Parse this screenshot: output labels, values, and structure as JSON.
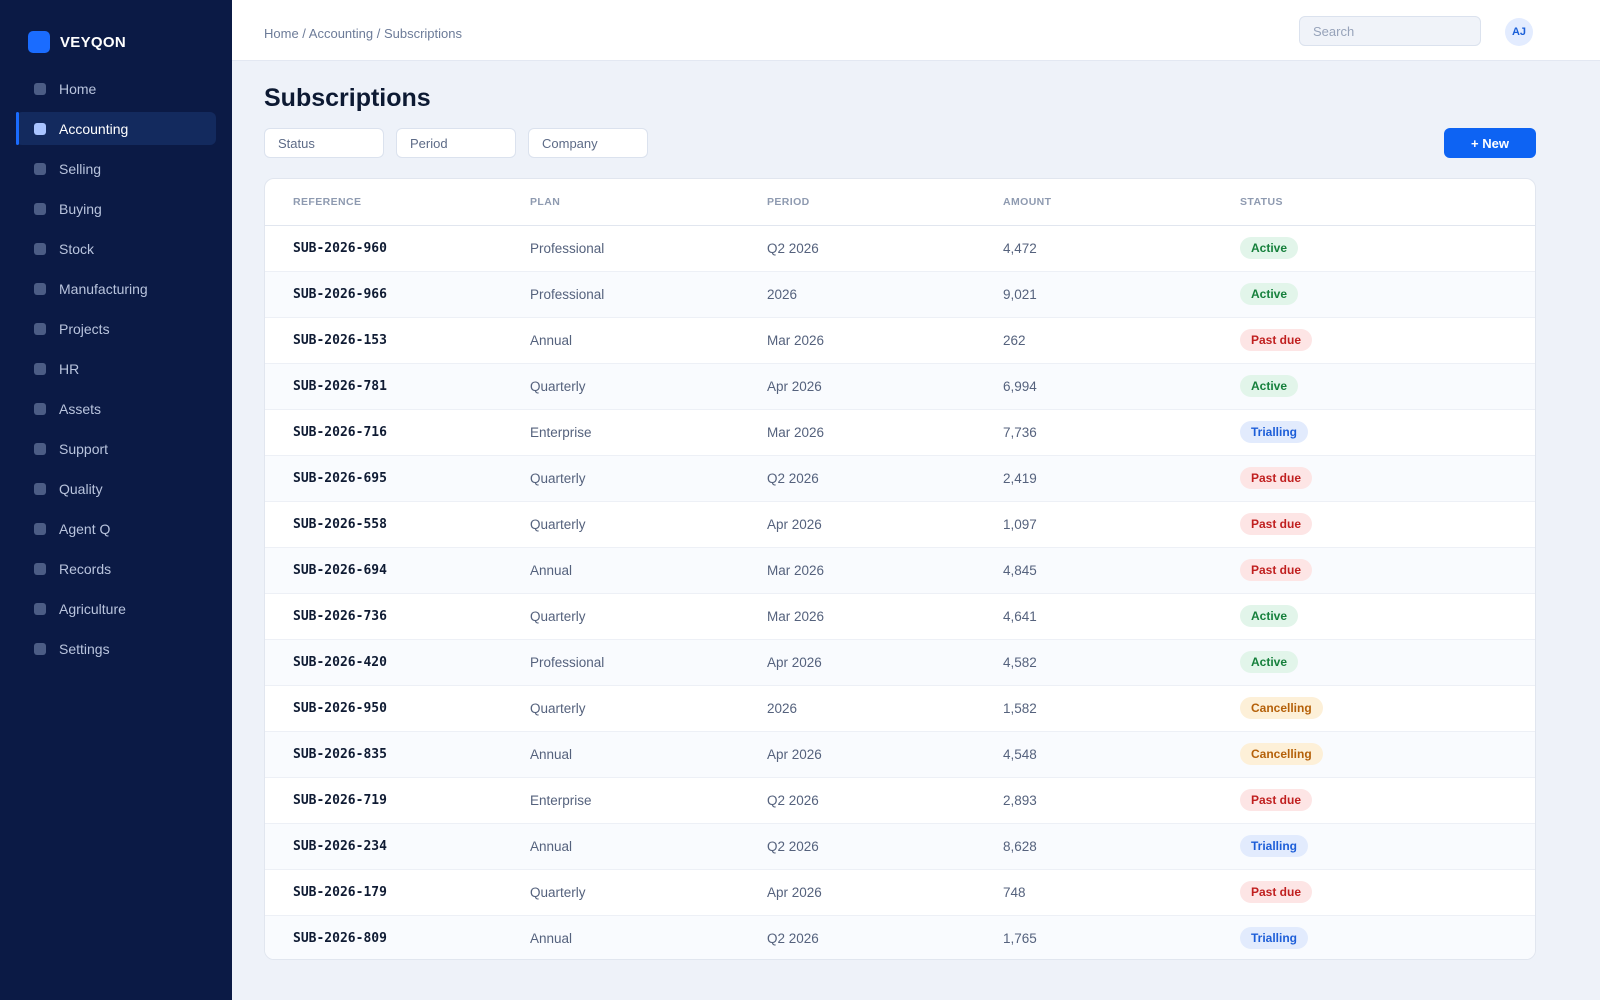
{
  "app": {
    "name": "VEYQON"
  },
  "sidebar": {
    "items": [
      {
        "label": "Home",
        "active": false
      },
      {
        "label": "Accounting",
        "active": true
      },
      {
        "label": "Selling",
        "active": false
      },
      {
        "label": "Buying",
        "active": false
      },
      {
        "label": "Stock",
        "active": false
      },
      {
        "label": "Manufacturing",
        "active": false
      },
      {
        "label": "Projects",
        "active": false
      },
      {
        "label": "HR",
        "active": false
      },
      {
        "label": "Assets",
        "active": false
      },
      {
        "label": "Support",
        "active": false
      },
      {
        "label": "Quality",
        "active": false
      },
      {
        "label": "Agent Q",
        "active": false
      },
      {
        "label": "Records",
        "active": false
      },
      {
        "label": "Agriculture",
        "active": false
      },
      {
        "label": "Settings",
        "active": false
      }
    ]
  },
  "header": {
    "breadcrumb": "Home / Accounting / Subscriptions",
    "search_placeholder": "Search",
    "avatar_initials": "AJ"
  },
  "main": {
    "title": "Subscriptions",
    "filters": [
      "Status",
      "Period",
      "Company"
    ],
    "new_button_label": "+ New"
  },
  "table": {
    "columns": [
      "REFERENCE",
      "PLAN",
      "PERIOD",
      "AMOUNT",
      "STATUS"
    ],
    "rows": [
      {
        "reference": "SUB-2026-960",
        "plan": "Professional",
        "period": "Q2 2026",
        "amount": "4,472",
        "status": "Active"
      },
      {
        "reference": "SUB-2026-966",
        "plan": "Professional",
        "period": "2026",
        "amount": "9,021",
        "status": "Active"
      },
      {
        "reference": "SUB-2026-153",
        "plan": "Annual",
        "period": "Mar 2026",
        "amount": "262",
        "status": "Past due"
      },
      {
        "reference": "SUB-2026-781",
        "plan": "Quarterly",
        "period": "Apr 2026",
        "amount": "6,994",
        "status": "Active"
      },
      {
        "reference": "SUB-2026-716",
        "plan": "Enterprise",
        "period": "Mar 2026",
        "amount": "7,736",
        "status": "Trialling"
      },
      {
        "reference": "SUB-2026-695",
        "plan": "Quarterly",
        "period": "Q2 2026",
        "amount": "2,419",
        "status": "Past due"
      },
      {
        "reference": "SUB-2026-558",
        "plan": "Quarterly",
        "period": "Apr 2026",
        "amount": "1,097",
        "status": "Past due"
      },
      {
        "reference": "SUB-2026-694",
        "plan": "Annual",
        "period": "Mar 2026",
        "amount": "4,845",
        "status": "Past due"
      },
      {
        "reference": "SUB-2026-736",
        "plan": "Quarterly",
        "period": "Mar 2026",
        "amount": "4,641",
        "status": "Active"
      },
      {
        "reference": "SUB-2026-420",
        "plan": "Professional",
        "period": "Apr 2026",
        "amount": "4,582",
        "status": "Active"
      },
      {
        "reference": "SUB-2026-950",
        "plan": "Quarterly",
        "period": "2026",
        "amount": "1,582",
        "status": "Cancelling"
      },
      {
        "reference": "SUB-2026-835",
        "plan": "Annual",
        "period": "Apr 2026",
        "amount": "4,548",
        "status": "Cancelling"
      },
      {
        "reference": "SUB-2026-719",
        "plan": "Enterprise",
        "period": "Q2 2026",
        "amount": "2,893",
        "status": "Past due"
      },
      {
        "reference": "SUB-2026-234",
        "plan": "Annual",
        "period": "Q2 2026",
        "amount": "8,628",
        "status": "Trialling"
      },
      {
        "reference": "SUB-2026-179",
        "plan": "Quarterly",
        "period": "Apr 2026",
        "amount": "748",
        "status": "Past due"
      },
      {
        "reference": "SUB-2026-809",
        "plan": "Annual",
        "period": "Q2 2026",
        "amount": "1,765",
        "status": "Trialling"
      }
    ]
  },
  "colors": {
    "sidebar_bg": "#0b1a45",
    "accent": "#0d63f3",
    "status_active": "#16803c",
    "status_past_due": "#c01f1f",
    "status_trialling": "#1d5ed8",
    "status_cancelling": "#b5610a"
  }
}
